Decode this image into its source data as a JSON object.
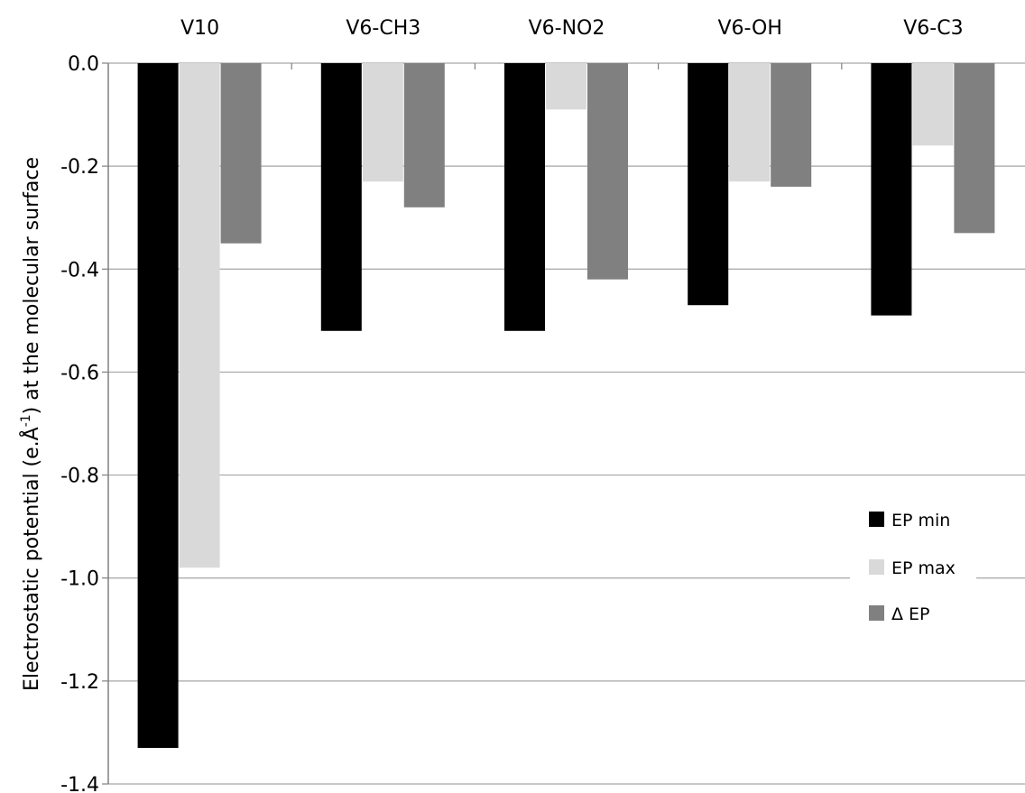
{
  "chart_data": {
    "type": "bar",
    "categories": [
      "V10",
      "V6-CH3",
      "V6-NO2",
      "V6-OH",
      "V6-C3"
    ],
    "series": [
      {
        "name": "EP min",
        "color": "#000000",
        "values": [
          -1.33,
          -0.52,
          -0.52,
          -0.47,
          -0.49
        ]
      },
      {
        "name": "EP max",
        "color": "#d9d9d9",
        "values": [
          -0.98,
          -0.23,
          -0.09,
          -0.23,
          -0.16
        ]
      },
      {
        "name": "Δ EP",
        "color": "#808080",
        "values": [
          -0.35,
          -0.28,
          -0.42,
          -0.24,
          -0.33
        ]
      }
    ],
    "title": "",
    "xlabel": "",
    "ylabel": {
      "prefix": "Electrostatic potential (e.Å",
      "superscript": "-1",
      "suffix": ") at the molecular surface"
    },
    "ylim": [
      -1.4,
      0.0
    ],
    "yticks": [
      "0.0",
      "-0.2",
      "-0.4",
      "-0.6",
      "-0.8",
      "-1.0",
      "-1.2",
      "-1.4"
    ],
    "ytick_values": [
      0.0,
      -0.2,
      -0.4,
      -0.6,
      -0.8,
      -1.0,
      -1.2,
      -1.4
    ],
    "category_axis_position": "top",
    "grid": "horizontal",
    "legend_position": "lower-right"
  }
}
